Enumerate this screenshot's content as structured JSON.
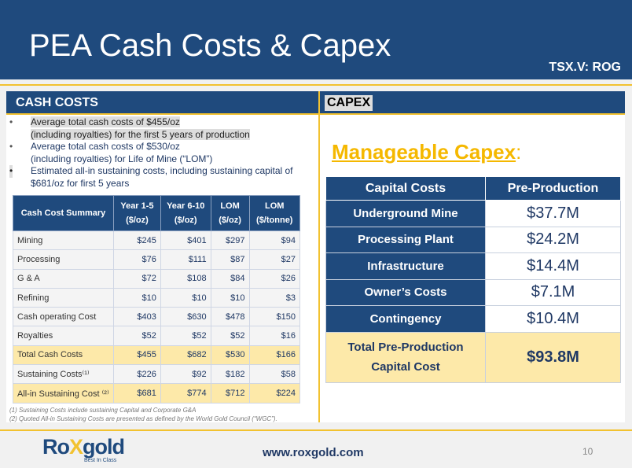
{
  "header": {
    "title": "PEA Cash Costs & Capex",
    "ticker": "TSX.V: ROG"
  },
  "cash_costs": {
    "title": "CASH COSTS",
    "bullets": [
      {
        "line1": "Average total cash costs of $455/oz",
        "line2": "(including royalties) for the first 5 years of production"
      },
      {
        "line1": "Average  total cash costs of $530/oz",
        "line2": "(including royalties) for Life of Mine (“LOM”)"
      },
      {
        "line1": "Estimated all-in sustaining costs, including sustaining capital of",
        "line2": "$681/oz for first 5 years"
      }
    ],
    "table": {
      "headers": [
        "Cash Cost Summary",
        "Year 1-5 ($/oz)",
        "Year 6-10 ($/oz)",
        "LOM ($/oz)",
        "LOM ($/tonne)"
      ],
      "rows": [
        [
          "Mining",
          "$245",
          "$401",
          "$297",
          "$94"
        ],
        [
          "Processing",
          "$76",
          "$111",
          "$87",
          "$27"
        ],
        [
          "G & A",
          "$72",
          "$108",
          "$84",
          "$26"
        ],
        [
          "Refining",
          "$10",
          "$10",
          "$10",
          "$3"
        ],
        [
          "Cash operating Cost",
          "$403",
          "$630",
          "$478",
          "$150"
        ],
        [
          "Royalties",
          "$52",
          "$52",
          "$52",
          "$16"
        ],
        [
          "Total Cash Costs",
          "$455",
          "$682",
          "$530",
          "$166"
        ],
        [
          "Sustaining Costs⁽¹⁾",
          "$226",
          "$92",
          "$182",
          "$58"
        ],
        [
          "All-in Sustaining Cost ⁽²⁾",
          "$681",
          "$774",
          "$712",
          "$224"
        ]
      ]
    },
    "notes": [
      "(1) Sustaining Costs include sustaining Capital and Corporate G&A",
      "(2) Quoted All-in Sustaining Costs are presented as defined by the World Gold Council (“WGC”)."
    ]
  },
  "capex": {
    "title": "CAPEX",
    "headline": "Manageable Capex",
    "colon": ":",
    "headers": [
      "Capital Costs",
      "Pre-Production"
    ],
    "rows": [
      [
        "Underground Mine",
        "$37.7M"
      ],
      [
        "Processing Plant",
        "$24.2M"
      ],
      [
        "Infrastructure",
        "$14.4M"
      ],
      [
        "Owner’s Costs",
        "$7.1M"
      ],
      [
        "Contingency",
        "$10.4M"
      ]
    ],
    "total": {
      "line1": "Total Pre-Production",
      "line2": "Capital Cost",
      "value": "$93.8M"
    }
  },
  "footer": {
    "logo_a": "Ro",
    "logo_x": "X",
    "logo_b": "gold",
    "tagline": "Best In Class",
    "url": "www.roxgold.com",
    "page": "10"
  }
}
